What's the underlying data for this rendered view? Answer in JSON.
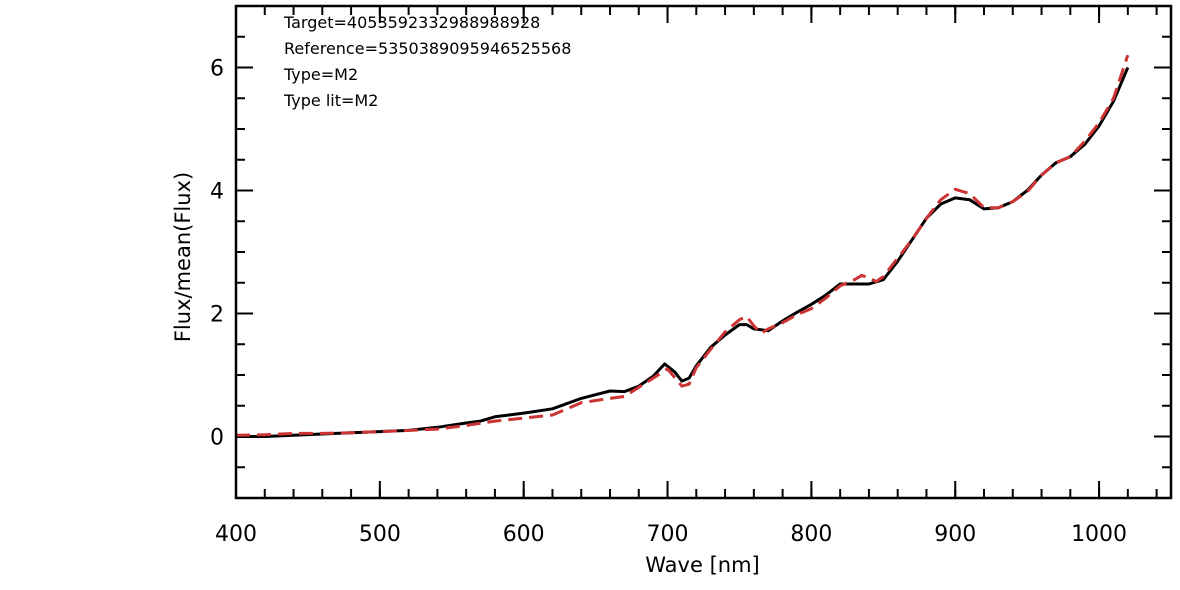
{
  "chart_data": {
    "type": "line",
    "title": "",
    "xlabel": "Wave [nm]",
    "ylabel": "Flux/mean(Flux)",
    "xlim": [
      400,
      1050
    ],
    "ylim": [
      -1,
      7
    ],
    "x_ticks": [
      400,
      500,
      600,
      700,
      800,
      900,
      1000
    ],
    "y_ticks": [
      0,
      2,
      4,
      6
    ],
    "x_minor_step": 20,
    "y_minor_step": 0.5,
    "grid": false,
    "annotations": [
      "Target=4053592332988988928",
      "Reference=5350389095946525568",
      "Type=M2",
      "Type lit=M2"
    ],
    "series": [
      {
        "color": "#000000",
        "dash": "solid",
        "x": [
          400,
          420,
          440,
          460,
          480,
          500,
          520,
          540,
          560,
          570,
          580,
          600,
          620,
          640,
          650,
          660,
          670,
          680,
          690,
          698,
          705,
          710,
          715,
          720,
          730,
          740,
          750,
          755,
          760,
          770,
          780,
          790,
          800,
          810,
          820,
          830,
          840,
          850,
          860,
          870,
          880,
          890,
          900,
          910,
          920,
          930,
          940,
          950,
          960,
          970,
          980,
          990,
          1000,
          1010,
          1020
        ],
        "y": [
          0.0,
          0.0,
          0.02,
          0.04,
          0.06,
          0.08,
          0.1,
          0.15,
          0.22,
          0.25,
          0.32,
          0.38,
          0.45,
          0.62,
          0.68,
          0.74,
          0.73,
          0.82,
          0.98,
          1.18,
          1.05,
          0.9,
          0.95,
          1.15,
          1.45,
          1.65,
          1.82,
          1.82,
          1.75,
          1.72,
          1.88,
          2.02,
          2.15,
          2.3,
          2.48,
          2.48,
          2.48,
          2.55,
          2.85,
          3.2,
          3.55,
          3.78,
          3.88,
          3.85,
          3.7,
          3.72,
          3.82,
          4.0,
          4.25,
          4.45,
          4.55,
          4.75,
          5.05,
          5.45,
          6.0
        ]
      },
      {
        "color": "#cc3333",
        "dash": "dashed",
        "x": [
          400,
          420,
          440,
          460,
          480,
          500,
          520,
          540,
          560,
          580,
          600,
          620,
          640,
          660,
          670,
          680,
          690,
          700,
          710,
          715,
          720,
          730,
          740,
          750,
          755,
          760,
          765,
          770,
          780,
          790,
          800,
          810,
          820,
          830,
          835,
          840,
          845,
          850,
          860,
          870,
          880,
          890,
          900,
          910,
          920,
          930,
          940,
          950,
          960,
          970,
          980,
          990,
          1000,
          1010,
          1020
        ],
        "y": [
          0.02,
          0.03,
          0.05,
          0.05,
          0.06,
          0.08,
          0.1,
          0.12,
          0.18,
          0.25,
          0.3,
          0.35,
          0.55,
          0.62,
          0.65,
          0.8,
          0.95,
          1.1,
          0.82,
          0.85,
          1.12,
          1.42,
          1.7,
          1.9,
          1.95,
          1.8,
          1.68,
          1.75,
          1.85,
          1.98,
          2.08,
          2.25,
          2.45,
          2.55,
          2.62,
          2.58,
          2.52,
          2.6,
          2.9,
          3.2,
          3.55,
          3.85,
          4.02,
          3.95,
          3.72,
          3.72,
          3.82,
          3.98,
          4.25,
          4.45,
          4.55,
          4.8,
          5.1,
          5.5,
          6.2
        ]
      }
    ]
  }
}
